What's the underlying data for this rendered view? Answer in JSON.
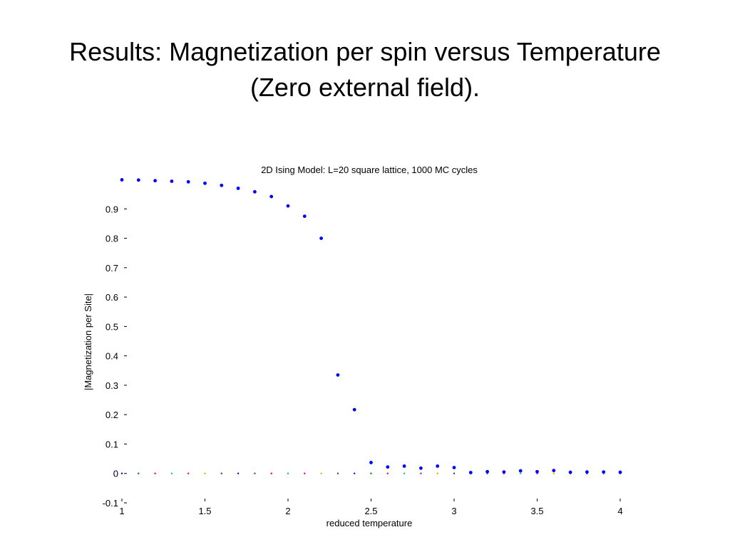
{
  "slide": {
    "title_line1": "Results: Magnetization per spin versus Temperature",
    "title_line2": "(Zero external field)."
  },
  "chart_data": {
    "type": "scatter",
    "title": "2D Ising Model:  L=20 square lattice, 1000 MC cycles",
    "xlabel": "reduced temperature",
    "ylabel": "|Magnetization per Site|",
    "xlim": [
      1,
      4
    ],
    "ylim": [
      -0.1,
      1
    ],
    "xticks": [
      1,
      1.5,
      2,
      2.5,
      3,
      3.5,
      4
    ],
    "xtick_labels": [
      "1",
      "1.5",
      "2",
      "2.5",
      "3",
      "3.5",
      "4"
    ],
    "yticks": [
      -0.1,
      0,
      0.1,
      0.2,
      0.3,
      0.4,
      0.5,
      0.6,
      0.7,
      0.8,
      0.9
    ],
    "ytick_labels": [
      "-0.1",
      "0",
      "0.1",
      "0.2",
      "0.3",
      "0.4",
      "0.5",
      "0.6",
      "0.7",
      "0.8",
      "0.9"
    ],
    "grid": false,
    "series": [
      {
        "color": "#0000ff",
        "x": [
          1.0,
          1.1,
          1.2,
          1.3,
          1.4,
          1.5,
          1.6,
          1.7,
          1.8,
          1.9,
          2.0,
          2.1,
          2.2,
          2.3,
          2.4,
          2.5,
          2.6,
          2.7,
          2.8,
          2.9,
          3.0,
          3.1,
          3.2,
          3.3,
          3.4,
          3.5,
          3.6,
          3.7,
          3.8,
          3.9,
          4.0
        ],
        "y": [
          0.999,
          0.998,
          0.996,
          0.994,
          0.992,
          0.987,
          0.98,
          0.97,
          0.958,
          0.942,
          0.91,
          0.875,
          0.8,
          0.335,
          0.217,
          0.037,
          0.022,
          0.025,
          0.018,
          0.025,
          0.02,
          0.003,
          0.006,
          0.005,
          0.009,
          0.006,
          0.01,
          0.004,
          0.005,
          0.005,
          0.004
        ]
      }
    ],
    "baseline_markers": {
      "x": [
        1.0,
        1.1,
        1.2,
        1.3,
        1.4,
        1.5,
        1.6,
        1.7,
        1.8,
        1.9,
        2.0,
        2.1,
        2.2,
        2.3,
        2.4,
        2.5,
        2.6,
        2.7,
        2.8,
        2.9,
        3.0,
        3.1,
        3.2,
        3.3,
        3.4,
        3.5,
        3.6,
        3.7,
        3.8,
        3.9,
        4.0
      ],
      "y": 0,
      "colors": [
        "#0000ff",
        "#008000",
        "#ff0000",
        "#00bfbf",
        "#bf00bf",
        "#bfbf00",
        "#404040"
      ]
    }
  }
}
